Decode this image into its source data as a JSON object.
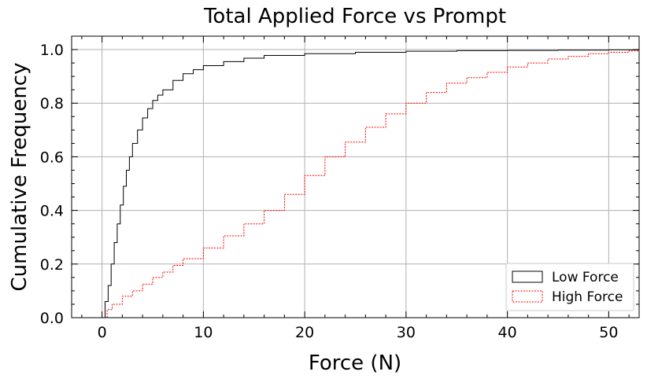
{
  "chart_data": {
    "type": "line",
    "title": "Total Applied Force vs Prompt",
    "xlabel": "Force (N)",
    "ylabel": "Cumulative Frequency",
    "xlim": [
      -3,
      53
    ],
    "ylim": [
      0,
      1.05
    ],
    "xticks": [
      0,
      10,
      20,
      30,
      40,
      50
    ],
    "yticks": [
      0.0,
      0.2,
      0.4,
      0.6,
      0.8,
      1.0
    ],
    "xtick_labels": [
      "0",
      "10",
      "20",
      "30",
      "40",
      "50"
    ],
    "ytick_labels": [
      "0.0",
      "0.2",
      "0.4",
      "0.6",
      "0.8",
      "1.0"
    ],
    "grid": true,
    "legend_position": "bottom-right",
    "series": [
      {
        "name": "Low Force",
        "color": "#000000",
        "style": "solid-step",
        "x": [
          0,
          0.3,
          0.6,
          0.9,
          1.2,
          1.5,
          1.8,
          2.1,
          2.4,
          2.7,
          3.0,
          3.5,
          4.0,
          4.5,
          5.0,
          5.5,
          6.0,
          7.0,
          8.0,
          9.0,
          10.0,
          12.0,
          14.0,
          16.0,
          20.0,
          25.0,
          30.0,
          35.0,
          40.0,
          45.0,
          50.0,
          53.0
        ],
        "y": [
          0.0,
          0.06,
          0.12,
          0.2,
          0.28,
          0.35,
          0.42,
          0.49,
          0.55,
          0.6,
          0.65,
          0.7,
          0.745,
          0.78,
          0.81,
          0.83,
          0.85,
          0.885,
          0.91,
          0.925,
          0.94,
          0.955,
          0.968,
          0.978,
          0.985,
          0.99,
          0.994,
          0.996,
          0.997,
          0.998,
          0.999,
          1.0
        ]
      },
      {
        "name": "High Force",
        "color": "#ff0000",
        "style": "dashed-step",
        "x": [
          0,
          0.5,
          1.0,
          2.0,
          3.0,
          4.0,
          5.0,
          6.0,
          7.0,
          8.0,
          10.0,
          12.0,
          14.0,
          16.0,
          18.0,
          20.0,
          22.0,
          24.0,
          26.0,
          28.0,
          30.0,
          32.0,
          34.0,
          36.0,
          38.0,
          40.0,
          42.0,
          44.0,
          46.0,
          48.0,
          50.0,
          52.0,
          53.0
        ],
        "y": [
          0.0,
          0.03,
          0.05,
          0.08,
          0.1,
          0.125,
          0.15,
          0.17,
          0.195,
          0.22,
          0.26,
          0.305,
          0.35,
          0.4,
          0.46,
          0.53,
          0.6,
          0.655,
          0.71,
          0.76,
          0.8,
          0.84,
          0.875,
          0.895,
          0.915,
          0.935,
          0.95,
          0.965,
          0.975,
          0.985,
          0.99,
          0.995,
          1.0
        ]
      }
    ]
  }
}
